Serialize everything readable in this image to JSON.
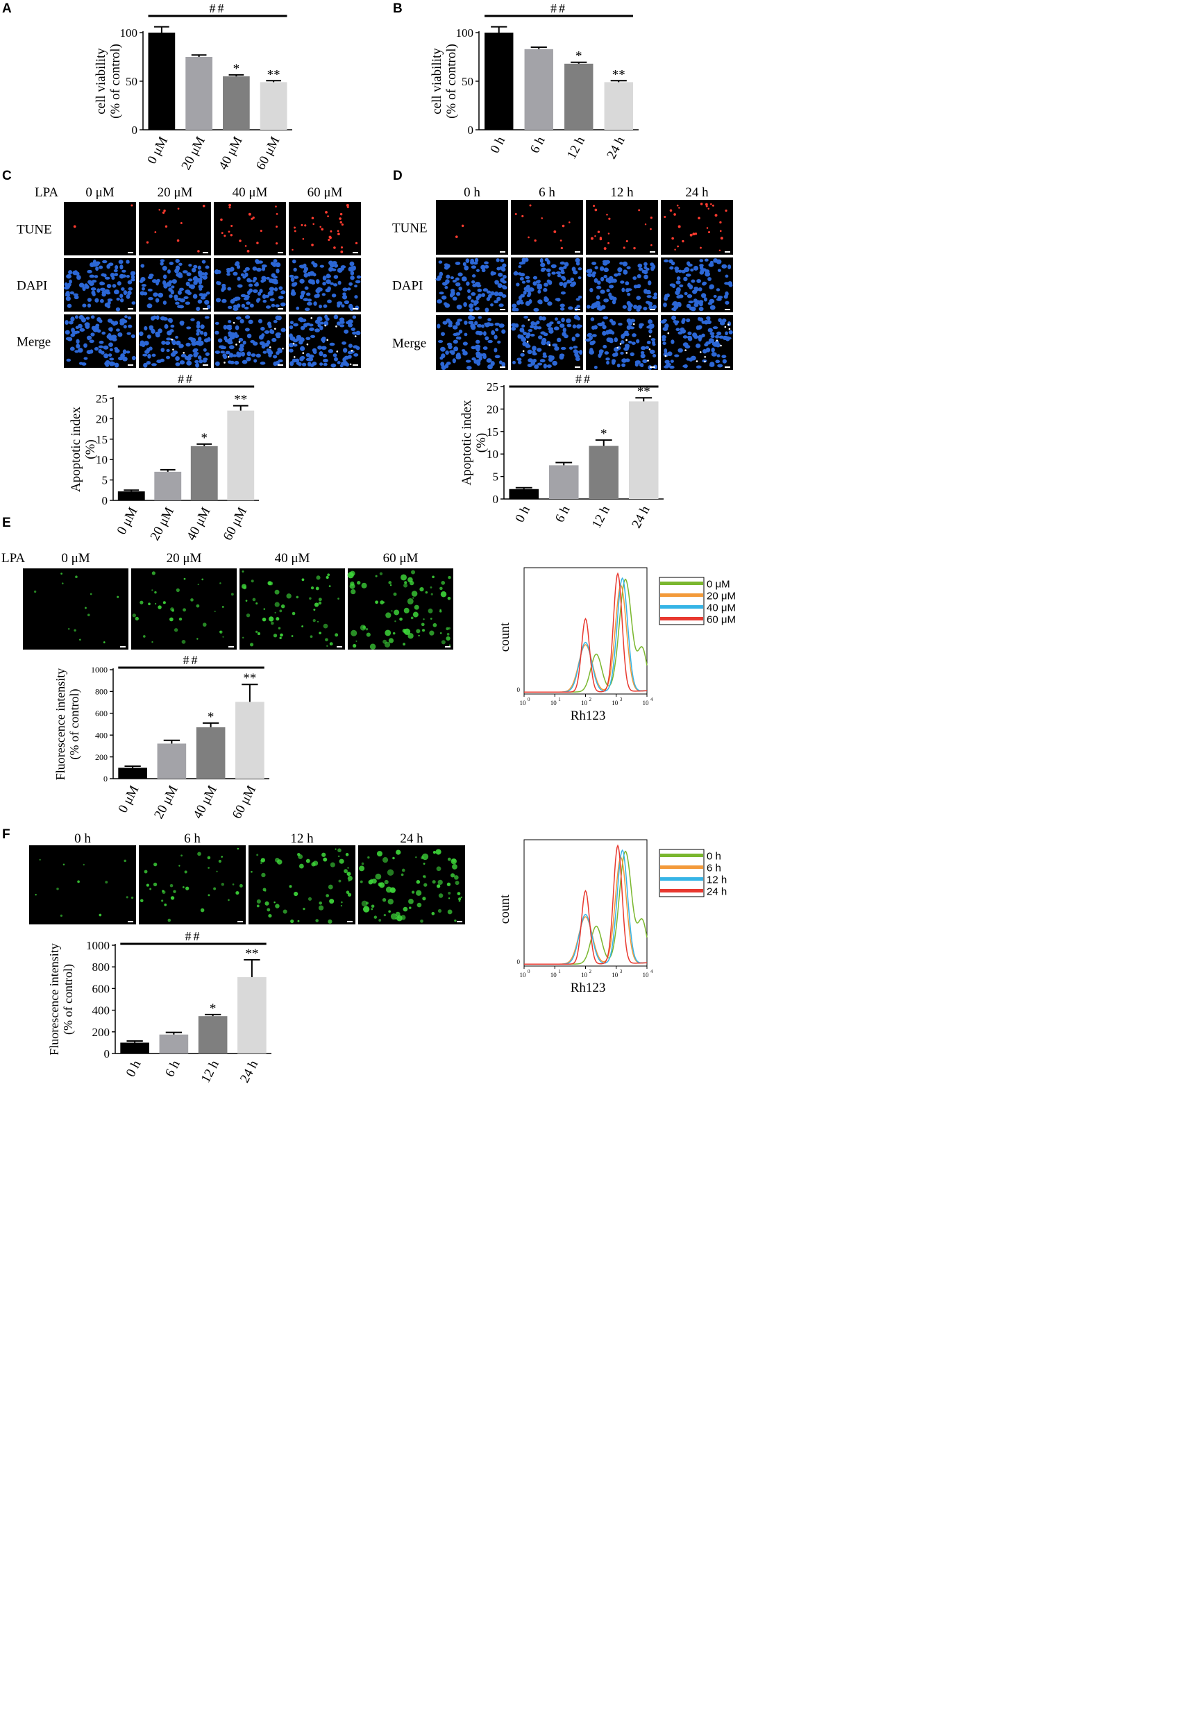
{
  "colors": {
    "black": "#000000",
    "mid_gray": "#a3a3a8",
    "dark_gray": "#7f7f7f",
    "light_gray": "#d9d9d9",
    "tunel": "#ff3b2f",
    "dapi": "#2c67d6",
    "rh123": "#3ed83a",
    "histogram": [
      "#7ab72e",
      "#f39a3a",
      "#35b4e6",
      "#e8382f"
    ]
  },
  "bar_charts": {
    "A": {
      "panel": "A",
      "ylabel": [
        "cell viability",
        "(% of control)"
      ],
      "categories": [
        "0 μM",
        "20 μM",
        "40 μM",
        "60 μM"
      ],
      "values": [
        100,
        75,
        55,
        49
      ],
      "errors": [
        6,
        2,
        1.5,
        1.5
      ],
      "stars": [
        "",
        "",
        "*",
        "**"
      ],
      "ticks": [
        "0",
        "50",
        "100"
      ],
      "sig": "##"
    },
    "B": {
      "panel": "B",
      "ylabel": [
        "cell viability",
        "(% of control)"
      ],
      "categories": [
        "0 h",
        "6 h",
        "12 h",
        "24 h"
      ],
      "values": [
        100,
        83,
        68,
        49
      ],
      "errors": [
        6,
        2,
        1.5,
        1.5
      ],
      "stars": [
        "",
        "",
        "*",
        "**"
      ],
      "ticks": [
        "0",
        "50",
        "100"
      ],
      "sig": "##"
    },
    "C": {
      "ylabel": [
        "Apoptotic index",
        "(%)"
      ],
      "categories": [
        "0 μM",
        "20 μM",
        "40 μM",
        "60 μM"
      ],
      "values": [
        2.2,
        7,
        13.3,
        22
      ],
      "errors": [
        0.3,
        0.5,
        0.5,
        1.2
      ],
      "stars": [
        "",
        "",
        "*",
        "**"
      ],
      "ticks": [
        "0",
        "5",
        "10",
        "15",
        "20",
        "25"
      ],
      "sig": "##"
    },
    "D": {
      "ylabel": [
        "Apoptotic index",
        "(%)"
      ],
      "categories": [
        "0 h",
        "6 h",
        "12 h",
        "24 h"
      ],
      "values": [
        2.2,
        7.5,
        11.8,
        21.7
      ],
      "errors": [
        0.3,
        0.6,
        1.3,
        0.8
      ],
      "stars": [
        "",
        "",
        "*",
        "**"
      ],
      "ticks": [
        "0",
        "5",
        "10",
        "15",
        "20",
        "25"
      ],
      "sig": "##"
    },
    "E": {
      "ylabel": [
        "Fluorescence intensity",
        "(% of control)"
      ],
      "categories": [
        "0 μM",
        "20 μM",
        "40 μM",
        "60 μM"
      ],
      "values": [
        100,
        322,
        472,
        705
      ],
      "errors": [
        15,
        30,
        38,
        160
      ],
      "stars": [
        "",
        "",
        "*",
        "**"
      ],
      "ticks": [
        "0",
        "200",
        "400",
        "600",
        "800",
        "1000"
      ],
      "sig": "##"
    },
    "F": {
      "ylabel": [
        "Fluorescence intensity",
        "(% of control)"
      ],
      "categories": [
        "0 h",
        "6 h",
        "12 h",
        "24 h"
      ],
      "values": [
        100,
        175,
        345,
        705
      ],
      "errors": [
        15,
        20,
        15,
        160
      ],
      "stars": [
        "",
        "",
        "*",
        "**"
      ],
      "ticks": [
        "0",
        "200",
        "400",
        "600",
        "800",
        "1000"
      ],
      "sig": "##"
    }
  },
  "micro": {
    "C": {
      "panel": "C",
      "treatment": "LPA",
      "columns": [
        "0 μM",
        "20 μM",
        "40 μM",
        "60 μM"
      ],
      "rows": [
        "TUNE",
        "DAPI",
        "Merge"
      ]
    },
    "D": {
      "panel": "D",
      "columns": [
        "0 h",
        "6 h",
        "12 h",
        "24 h"
      ],
      "rows": [
        "TUNE",
        "DAPI",
        "Merge"
      ]
    },
    "E": {
      "panel": "E",
      "treatment": "LPA",
      "columns": [
        "0 μM",
        "20 μM",
        "40 μM",
        "60 μM"
      ]
    },
    "F": {
      "panel": "F",
      "columns": [
        "0 h",
        "6 h",
        "12 h",
        "24 h"
      ]
    }
  },
  "flow": {
    "E": {
      "ylabel": "count",
      "xlabel": "Rh123",
      "y0": "0",
      "decades": [
        "10",
        "10",
        "10",
        "10",
        "10"
      ],
      "exponents": [
        "0",
        "1",
        "2",
        "3",
        "4"
      ],
      "legend": [
        "0 μM",
        "20 μM",
        "40 μM",
        "60 μM"
      ]
    },
    "F": {
      "ylabel": "count",
      "xlabel": "Rh123",
      "y0": "0",
      "decades": [
        "10",
        "10",
        "10",
        "10",
        "10"
      ],
      "exponents": [
        "0",
        "1",
        "2",
        "3",
        "4"
      ],
      "legend": [
        "0 h",
        "6 h",
        "12 h",
        "24 h"
      ]
    }
  },
  "chart_data": [
    {
      "type": "bar",
      "categories": [
        "0 μM",
        "20 μM",
        "40 μM",
        "60 μM"
      ],
      "values": [
        100,
        75,
        55,
        49
      ],
      "ylabel": "cell viability (% of control)",
      "ylim": [
        0,
        100
      ]
    },
    {
      "type": "bar",
      "categories": [
        "0 h",
        "6 h",
        "12 h",
        "24 h"
      ],
      "values": [
        100,
        83,
        68,
        49
      ],
      "ylabel": "cell viability (% of control)",
      "ylim": [
        0,
        100
      ]
    },
    {
      "type": "bar",
      "categories": [
        "0 μM",
        "20 μM",
        "40 μM",
        "60 μM"
      ],
      "values": [
        2.2,
        7,
        13.3,
        22
      ],
      "ylabel": "Apoptotic index (%)",
      "ylim": [
        0,
        25
      ]
    },
    {
      "type": "bar",
      "categories": [
        "0 h",
        "6 h",
        "12 h",
        "24 h"
      ],
      "values": [
        2.2,
        7.5,
        11.8,
        21.7
      ],
      "ylabel": "Apoptotic index (%)",
      "ylim": [
        0,
        25
      ]
    },
    {
      "type": "bar",
      "categories": [
        "0 μM",
        "20 μM",
        "40 μM",
        "60 μM"
      ],
      "values": [
        100,
        322,
        472,
        705
      ],
      "ylabel": "Fluorescence intensity (% of control)",
      "ylim": [
        0,
        1000
      ]
    },
    {
      "type": "bar",
      "categories": [
        "0 h",
        "6 h",
        "12 h",
        "24 h"
      ],
      "values": [
        100,
        175,
        345,
        705
      ],
      "ylabel": "Fluorescence intensity (% of control)",
      "ylim": [
        0,
        1000
      ]
    }
  ]
}
